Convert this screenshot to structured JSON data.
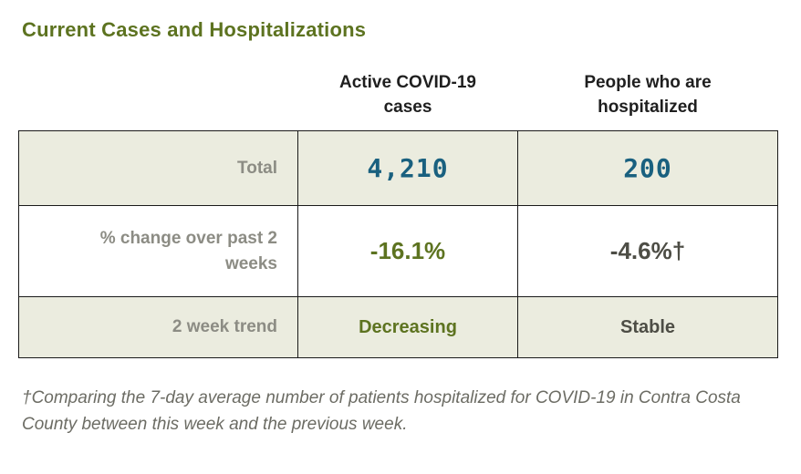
{
  "chart_data": {
    "type": "table",
    "title": "Current Cases and Hospitalizations",
    "columns": [
      "",
      "Active COVID-19 cases",
      "People who are hospitalized"
    ],
    "rows": [
      [
        "Total",
        "4,210",
        "200"
      ],
      [
        "% change over past 2 weeks",
        "-16.1%",
        "-4.6%†"
      ],
      [
        "2 week trend",
        "Decreasing",
        "Stable"
      ]
    ],
    "footnote": "†Comparing the 7-day average number of patients hospitalized for COVID-19 in Contra Costa County between this week and the previous week."
  },
  "colors": {
    "title_green": "#5d7320",
    "value_blue": "#19607f",
    "value_green": "#5d7320",
    "value_dark": "#4d4d45",
    "label_gray": "#8c8c84",
    "row_beige": "#ebecdf",
    "border": "#1a1a1a",
    "footnote_gray": "#6c6c64"
  }
}
